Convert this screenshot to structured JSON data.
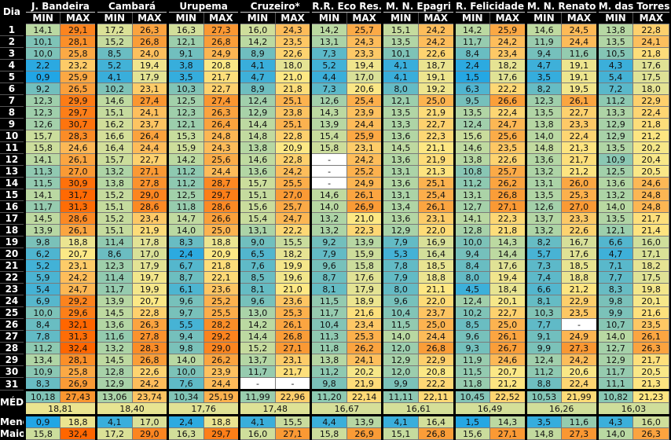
{
  "header": {
    "dia_label": "Dia",
    "min_label": "MIN",
    "max_label": "MAX"
  },
  "stations": [
    "J. Bandeira",
    "Cambará",
    "Urupema",
    "Cruzeiro*",
    "R.R. Eco Res.",
    "M. N. Epagri",
    "R. Felicidade",
    "M. N. Renato",
    "M. das Torres"
  ],
  "chart_data": {
    "type": "table",
    "color_scale": [
      [
        0,
        "#1aa3e8"
      ],
      [
        5,
        "#40b1d8"
      ],
      [
        10,
        "#7cc2b8"
      ],
      [
        14,
        "#b9d8a2"
      ],
      [
        18,
        "#e4e394"
      ],
      [
        21,
        "#fde884"
      ],
      [
        24,
        "#fdc05e"
      ],
      [
        27,
        "#fa9a35"
      ],
      [
        32,
        "#ff6600"
      ]
    ],
    "missing_color": "#ffffff",
    "rows": [
      {
        "dia": "1",
        "values": [
          "14,1",
          "29,1",
          "17,2",
          "26,3",
          "16,3",
          "27,3",
          "16,0",
          "24,3",
          "14,2",
          "25,7",
          "15,1",
          "24,2",
          "14,2",
          "25,9",
          "14,6",
          "24,5",
          "13,8",
          "22,8"
        ]
      },
      {
        "dia": "2",
        "values": [
          "10,1",
          "28,1",
          "15,2",
          "26,8",
          "12,1",
          "26,8",
          "14,2",
          "23,5",
          "13,1",
          "24,3",
          "13,5",
          "24,2",
          "11,7",
          "24,2",
          "11,9",
          "24,4",
          "13,5",
          "24,1"
        ]
      },
      {
        "dia": "3",
        "values": [
          "10,0",
          "25,8",
          "8,5",
          "24,0",
          "9,1",
          "24,9",
          "8,9",
          "22,6",
          "7,3",
          "23,3",
          "10,1",
          "22,6",
          "8,4",
          "23,4",
          "9,4",
          "11,6",
          "10,5",
          "21,8"
        ]
      },
      {
        "dia": "4",
        "values": [
          "2,2",
          "23,2",
          "5,2",
          "19,4",
          "3,8",
          "20,8",
          "4,1",
          "18,0",
          "5,2",
          "19,4",
          "4,1",
          "18,7",
          "2,4",
          "18,2",
          "4,7",
          "19,1",
          "4,3",
          "17,6"
        ]
      },
      {
        "dia": "5",
        "values": [
          "0,9",
          "25,9",
          "4,1",
          "17,9",
          "3,5",
          "21,7",
          "4,7",
          "21,0",
          "4,4",
          "17,0",
          "4,1",
          "19,1",
          "1,5",
          "17,6",
          "3,5",
          "19,1",
          "5,4",
          "17,5"
        ]
      },
      {
        "dia": "6",
        "values": [
          "9,2",
          "26,5",
          "10,2",
          "23,1",
          "10,3",
          "22,7",
          "8,9",
          "21,8",
          "7,3",
          "20,6",
          "8,0",
          "19,2",
          "6,3",
          "22,2",
          "8,2",
          "19,5",
          "7,2",
          "18,0"
        ]
      },
      {
        "dia": "7",
        "values": [
          "12,3",
          "29,9",
          "14,6",
          "27,4",
          "12,5",
          "27,4",
          "12,4",
          "25,1",
          "12,6",
          "25,4",
          "12,1",
          "25,0",
          "9,5",
          "26,6",
          "12,3",
          "26,1",
          "11,2",
          "22,9"
        ]
      },
      {
        "dia": "8",
        "values": [
          "12,3",
          "29,7",
          "15,1",
          "24,1",
          "12,3",
          "26,3",
          "12,9",
          "23,8",
          "14,3",
          "23,9",
          "13,5",
          "21,9",
          "13,5",
          "22,4",
          "13,5",
          "22,7",
          "13,3",
          "22,4"
        ]
      },
      {
        "dia": "9",
        "values": [
          "12,6",
          "30,7",
          "16,2",
          "23,7",
          "12,1",
          "26,4",
          "14,4",
          "25,1",
          "13,9",
          "24,4",
          "13,3",
          "22,7",
          "12,4",
          "24,7",
          "13,8",
          "23,3",
          "12,9",
          "21,8"
        ]
      },
      {
        "dia": "10",
        "values": [
          "15,7",
          "28,3",
          "16,6",
          "26,4",
          "15,3",
          "24,8",
          "14,8",
          "22,8",
          "15,4",
          "25,9",
          "13,6",
          "22,3",
          "15,6",
          "25,6",
          "14,0",
          "22,4",
          "12,9",
          "21,2"
        ]
      },
      {
        "dia": "11",
        "values": [
          "15,8",
          "24,6",
          "16,4",
          "24,4",
          "15,9",
          "24,3",
          "13,8",
          "20,9",
          "15,8",
          "23,1",
          "14,5",
          "21,1",
          "14,6",
          "23,5",
          "14,8",
          "21,3",
          "13,5",
          "20,2"
        ]
      },
      {
        "dia": "12",
        "values": [
          "14,1",
          "26,1",
          "15,7",
          "22,7",
          "14,2",
          "25,6",
          "14,6",
          "22,8",
          "-",
          "24,2",
          "13,6",
          "21,9",
          "13,8",
          "22,6",
          "13,6",
          "21,7",
          "10,9",
          "20,4"
        ]
      },
      {
        "dia": "13",
        "values": [
          "11,3",
          "27,0",
          "13,2",
          "27,1",
          "11,2",
          "24,4",
          "13,6",
          "24,2",
          "-",
          "25,2",
          "13,1",
          "21,3",
          "10,8",
          "25,7",
          "13,2",
          "21,2",
          "12,5",
          "20,5"
        ]
      },
      {
        "dia": "14",
        "values": [
          "11,5",
          "30,9",
          "13,8",
          "27,8",
          "11,2",
          "28,7",
          "15,7",
          "25,5",
          "-",
          "24,9",
          "13,6",
          "25,1",
          "11,2",
          "26,2",
          "13,1",
          "26,0",
          "13,6",
          "24,6"
        ]
      },
      {
        "dia": "15",
        "values": [
          "14,1",
          "31,7",
          "15,2",
          "29,0",
          "12,5",
          "29,7",
          "15,1",
          "27,0",
          "14,6",
          "26,1",
          "13,1",
          "25,4",
          "13,1",
          "26,8",
          "13,5",
          "25,3",
          "13,2",
          "24,8"
        ]
      },
      {
        "dia": "16",
        "values": [
          "11,7",
          "31,3",
          "15,1",
          "28,6",
          "11,8",
          "28,6",
          "15,6",
          "25,7",
          "14,0",
          "26,9",
          "13,4",
          "26,1",
          "12,7",
          "27,1",
          "12,6",
          "27,0",
          "14,0",
          "24,8"
        ]
      },
      {
        "dia": "17",
        "values": [
          "14,5",
          "28,6",
          "15,2",
          "23,4",
          "14,7",
          "26,6",
          "15,4",
          "24,7",
          "13,2",
          "21,0",
          "13,6",
          "23,1",
          "14,1",
          "22,3",
          "13,7",
          "23,3",
          "13,5",
          "21,7"
        ]
      },
      {
        "dia": "18",
        "values": [
          "13,9",
          "26,1",
          "15,1",
          "21,9",
          "14,0",
          "25,0",
          "13,1",
          "22,2",
          "13,2",
          "22,3",
          "12,9",
          "22,0",
          "12,8",
          "21,8",
          "13,2",
          "22,6",
          "12,1",
          "21,4"
        ]
      },
      {
        "dia": "19",
        "values": [
          "9,8",
          "18,8",
          "11,4",
          "17,8",
          "8,3",
          "18,8",
          "9,0",
          "15,5",
          "9,2",
          "13,9",
          "7,9",
          "16,9",
          "10,0",
          "14,3",
          "8,2",
          "16,7",
          "6,6",
          "16,0"
        ]
      },
      {
        "dia": "20",
        "values": [
          "6,2",
          "20,7",
          "8,6",
          "17,0",
          "2,4",
          "20,9",
          "6,5",
          "18,2",
          "7,9",
          "15,9",
          "5,3",
          "16,4",
          "9,4",
          "14,4",
          "5,7",
          "17,6",
          "4,7",
          "17,1"
        ]
      },
      {
        "dia": "21",
        "values": [
          "5,2",
          "23,1",
          "12,3",
          "17,9",
          "6,7",
          "21,8",
          "7,6",
          "19,9",
          "9,6",
          "15,8",
          "7,8",
          "18,5",
          "8,4",
          "17,6",
          "7,3",
          "18,5",
          "7,1",
          "18,2"
        ]
      },
      {
        "dia": "22",
        "values": [
          "5,9",
          "24,2",
          "11,4",
          "19,7",
          "8,7",
          "22,1",
          "8,5",
          "19,6",
          "8,7",
          "17,6",
          "7,9",
          "18,8",
          "8,0",
          "19,4",
          "7,4",
          "18,8",
          "7,7",
          "17,5"
        ]
      },
      {
        "dia": "23",
        "values": [
          "5,4",
          "24,7",
          "11,7",
          "19,9",
          "6,1",
          "23,6",
          "8,1",
          "21,0",
          "8,1",
          "17,9",
          "8,0",
          "21,1",
          "4,5",
          "18,4",
          "6,6",
          "21,2",
          "8,3",
          "19,8"
        ]
      },
      {
        "dia": "24",
        "values": [
          "6,9",
          "29,2",
          "13,9",
          "20,7",
          "9,6",
          "25,2",
          "9,6",
          "23,6",
          "11,5",
          "18,9",
          "9,6",
          "22,0",
          "12,4",
          "20,1",
          "8,1",
          "22,9",
          "9,8",
          "20,1"
        ]
      },
      {
        "dia": "25",
        "values": [
          "10,0",
          "29,6",
          "14,5",
          "22,8",
          "9,7",
          "25,5",
          "13,0",
          "25,3",
          "11,7",
          "21,6",
          "10,4",
          "23,7",
          "10,2",
          "22,7",
          "10,3",
          "23,5",
          "9,9",
          "21,6"
        ]
      },
      {
        "dia": "26",
        "values": [
          "8,4",
          "32,1",
          "13,6",
          "26,3",
          "5,5",
          "28,2",
          "14,2",
          "26,1",
          "10,4",
          "23,4",
          "11,5",
          "25,0",
          "8,5",
          "25,0",
          "7,7",
          "-",
          "10,7",
          "23,5"
        ]
      },
      {
        "dia": "27",
        "values": [
          "7,8",
          "31,3",
          "11,6",
          "27,8",
          "9,4",
          "29,2",
          "14,4",
          "26,8",
          "11,3",
          "25,3",
          "14,0",
          "24,4",
          "9,6",
          "26,1",
          "9,1",
          "24,9",
          "14,0",
          "26,1"
        ]
      },
      {
        "dia": "28",
        "values": [
          "11,2",
          "32,4",
          "13,2",
          "28,3",
          "9,8",
          "29,0",
          "15,2",
          "27,1",
          "11,8",
          "26,2",
          "12,0",
          "26,8",
          "9,3",
          "26,7",
          "9,9",
          "27,3",
          "12,7",
          "26,3"
        ]
      },
      {
        "dia": "29",
        "values": [
          "13,4",
          "28,1",
          "14,5",
          "26,8",
          "14,0",
          "26,2",
          "13,7",
          "23,1",
          "13,8",
          "24,1",
          "12,9",
          "22,9",
          "11,9",
          "24,6",
          "12,4",
          "24,2",
          "12,9",
          "21,7"
        ]
      },
      {
        "dia": "30",
        "values": [
          "10,9",
          "25,8",
          "12,8",
          "22,6",
          "10,0",
          "23,9",
          "11,7",
          "21,7",
          "11,2",
          "20,2",
          "12,0",
          "20,8",
          "11,5",
          "20,7",
          "11,2",
          "20,6",
          "11,7",
          "20,5"
        ]
      },
      {
        "dia": "31",
        "values": [
          "8,3",
          "26,9",
          "12,9",
          "24,2",
          "7,6",
          "24,4",
          "-",
          "-",
          "9,8",
          "21,9",
          "9,9",
          "22,2",
          "11,8",
          "21,2",
          "8,8",
          "22,4",
          "11,1",
          "21,3"
        ]
      }
    ],
    "media": {
      "label": "MÉDIA",
      "values": [
        "10,18",
        "27,43",
        "13,06",
        "23,74",
        "10,34",
        "25,19",
        "11,99",
        "22,96",
        "11,20",
        "22,14",
        "11,11",
        "22,11",
        "10,45",
        "22,52",
        "10,53",
        "21,99",
        "10,82",
        "21,23"
      ],
      "overall": [
        "18,81",
        "18,40",
        "17,76",
        "17,48",
        "16,67",
        "16,61",
        "16,49",
        "16,26",
        "16,03"
      ]
    },
    "menor": {
      "label": "Menor",
      "values": [
        "0,9",
        "18,8",
        "4,1",
        "17,0",
        "2,4",
        "18,8",
        "4,1",
        "15,5",
        "4,4",
        "13,9",
        "4,1",
        "16,4",
        "1,5",
        "14,3",
        "3,5",
        "11,6",
        "4,3",
        "16,0"
      ]
    },
    "maior": {
      "label": "Maior",
      "values": [
        "15,8",
        "32,4",
        "17,2",
        "29,0",
        "16,3",
        "29,7",
        "16,0",
        "27,1",
        "15,8",
        "26,9",
        "15,1",
        "26,8",
        "15,6",
        "27,1",
        "14,8",
        "27,3",
        "14,0",
        "26,3"
      ]
    }
  }
}
